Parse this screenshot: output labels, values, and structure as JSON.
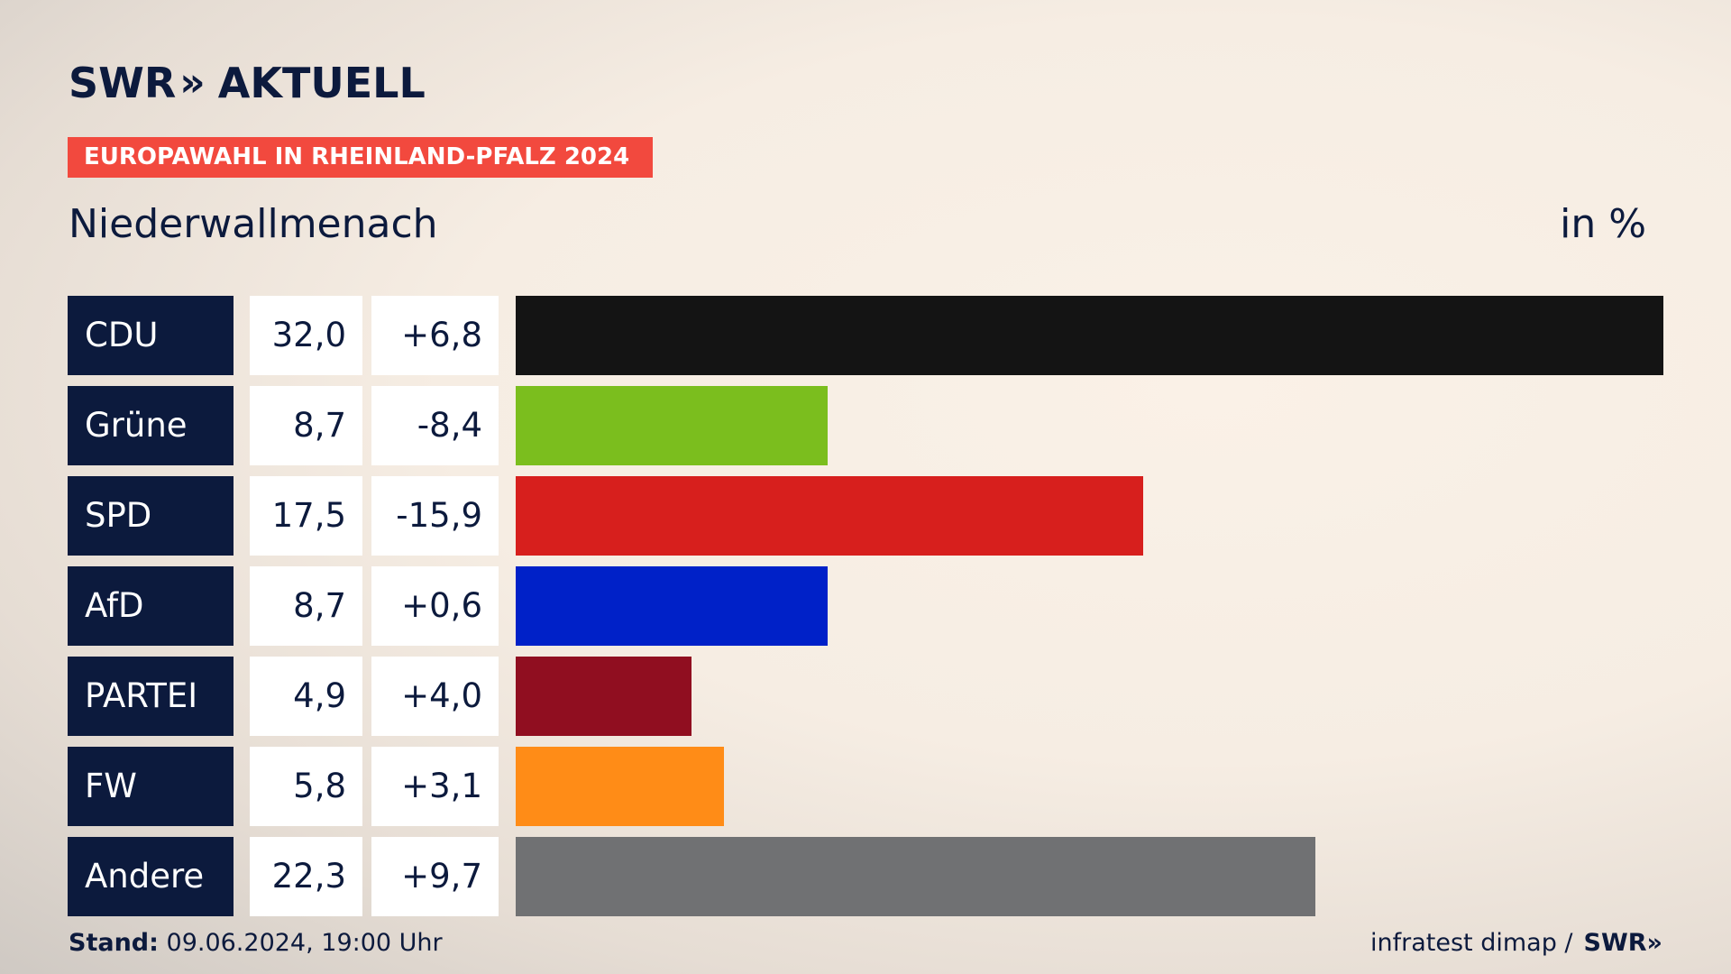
{
  "header": {
    "logo_left": "SWR",
    "logo_chevrons": "»",
    "logo_right": "AKTUELL",
    "tag": "EUROPAWAHL IN RHEINLAND-PFALZ 2024",
    "place": "Niederwallmenach",
    "unit": "in %"
  },
  "chart_data": {
    "type": "bar",
    "orientation": "horizontal",
    "title": "Niederwallmenach",
    "ylabel": "in %",
    "categories": [
      "CDU",
      "Grüne",
      "SPD",
      "AfD",
      "PARTEI",
      "FW",
      "Andere"
    ],
    "values": [
      32.0,
      8.7,
      17.5,
      8.7,
      4.9,
      5.8,
      22.3
    ],
    "value_labels": [
      "32,0",
      "8,7",
      "17,5",
      "8,7",
      "4,9",
      "5,8",
      "22,3"
    ],
    "change_labels": [
      "+6,8",
      "-8,4",
      "-15,9",
      "+0,6",
      "+4,0",
      "+3,1",
      "+9,7"
    ],
    "changes": [
      6.8,
      -8.4,
      -15.9,
      0.6,
      4.0,
      3.1,
      9.7
    ],
    "colors": [
      "#141414",
      "#7bbe1e",
      "#d71f1d",
      "#0021c8",
      "#900e20",
      "#ff8c17",
      "#707173"
    ],
    "xlim": [
      0,
      32.0
    ]
  },
  "footer": {
    "stand_label": "Stand:",
    "stand_value": "09.06.2024, 19:00 Uhr",
    "source": "infratest dimap /",
    "source_logo": "SWR»"
  }
}
